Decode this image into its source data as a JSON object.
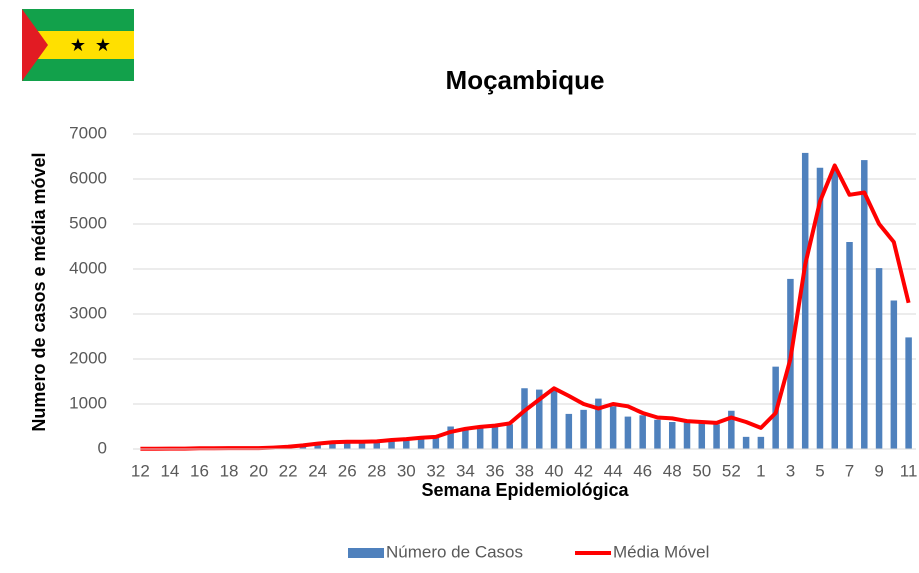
{
  "chart_data": {
    "type": "bar-line",
    "title": "Moçambique",
    "xlabel": "Semana Epidemiológica",
    "ylabel": "Numero de casos e média móvel",
    "categories": [
      "12",
      null,
      "14",
      null,
      "16",
      null,
      "18",
      null,
      "20",
      null,
      "22",
      null,
      "24",
      null,
      "26",
      null,
      "28",
      null,
      "30",
      null,
      "32",
      null,
      "34",
      null,
      "36",
      null,
      "38",
      null,
      "40",
      null,
      "42",
      null,
      "44",
      null,
      "46",
      null,
      "48",
      null,
      "50",
      null,
      "52",
      null,
      "1",
      null,
      "3",
      null,
      "5",
      null,
      "7",
      null,
      "9",
      null,
      "11"
    ],
    "series": [
      {
        "name": "Número de Casos",
        "type": "bar",
        "color": "#4f81bd",
        "values": [
          5,
          5,
          10,
          10,
          20,
          20,
          20,
          20,
          20,
          30,
          50,
          80,
          120,
          150,
          170,
          150,
          160,
          200,
          210,
          250,
          260,
          500,
          450,
          480,
          500,
          550,
          1350,
          1320,
          1300,
          780,
          870,
          1120,
          950,
          720,
          750,
          650,
          600,
          600,
          600,
          550,
          850,
          270,
          270,
          1830,
          3780,
          6580,
          6250,
          6200,
          4600,
          6420,
          4020,
          3300,
          2480
        ]
      },
      {
        "name": "Média Móvel",
        "type": "line",
        "color": "#ff0000",
        "values": [
          5,
          5,
          8,
          10,
          15,
          18,
          20,
          20,
          20,
          30,
          50,
          80,
          120,
          150,
          160,
          160,
          170,
          200,
          220,
          250,
          270,
          380,
          450,
          490,
          520,
          570,
          850,
          1100,
          1350,
          1180,
          1000,
          900,
          1000,
          950,
          800,
          700,
          680,
          620,
          600,
          580,
          700,
          600,
          470,
          800,
          2000,
          4100,
          5500,
          6300,
          5650,
          5700,
          5000,
          4600,
          3250
        ]
      }
    ],
    "ylim": [
      0,
      7000
    ],
    "yticks": [
      0,
      1000,
      2000,
      3000,
      4000,
      5000,
      6000,
      7000
    ],
    "legend": "bottom"
  }
}
